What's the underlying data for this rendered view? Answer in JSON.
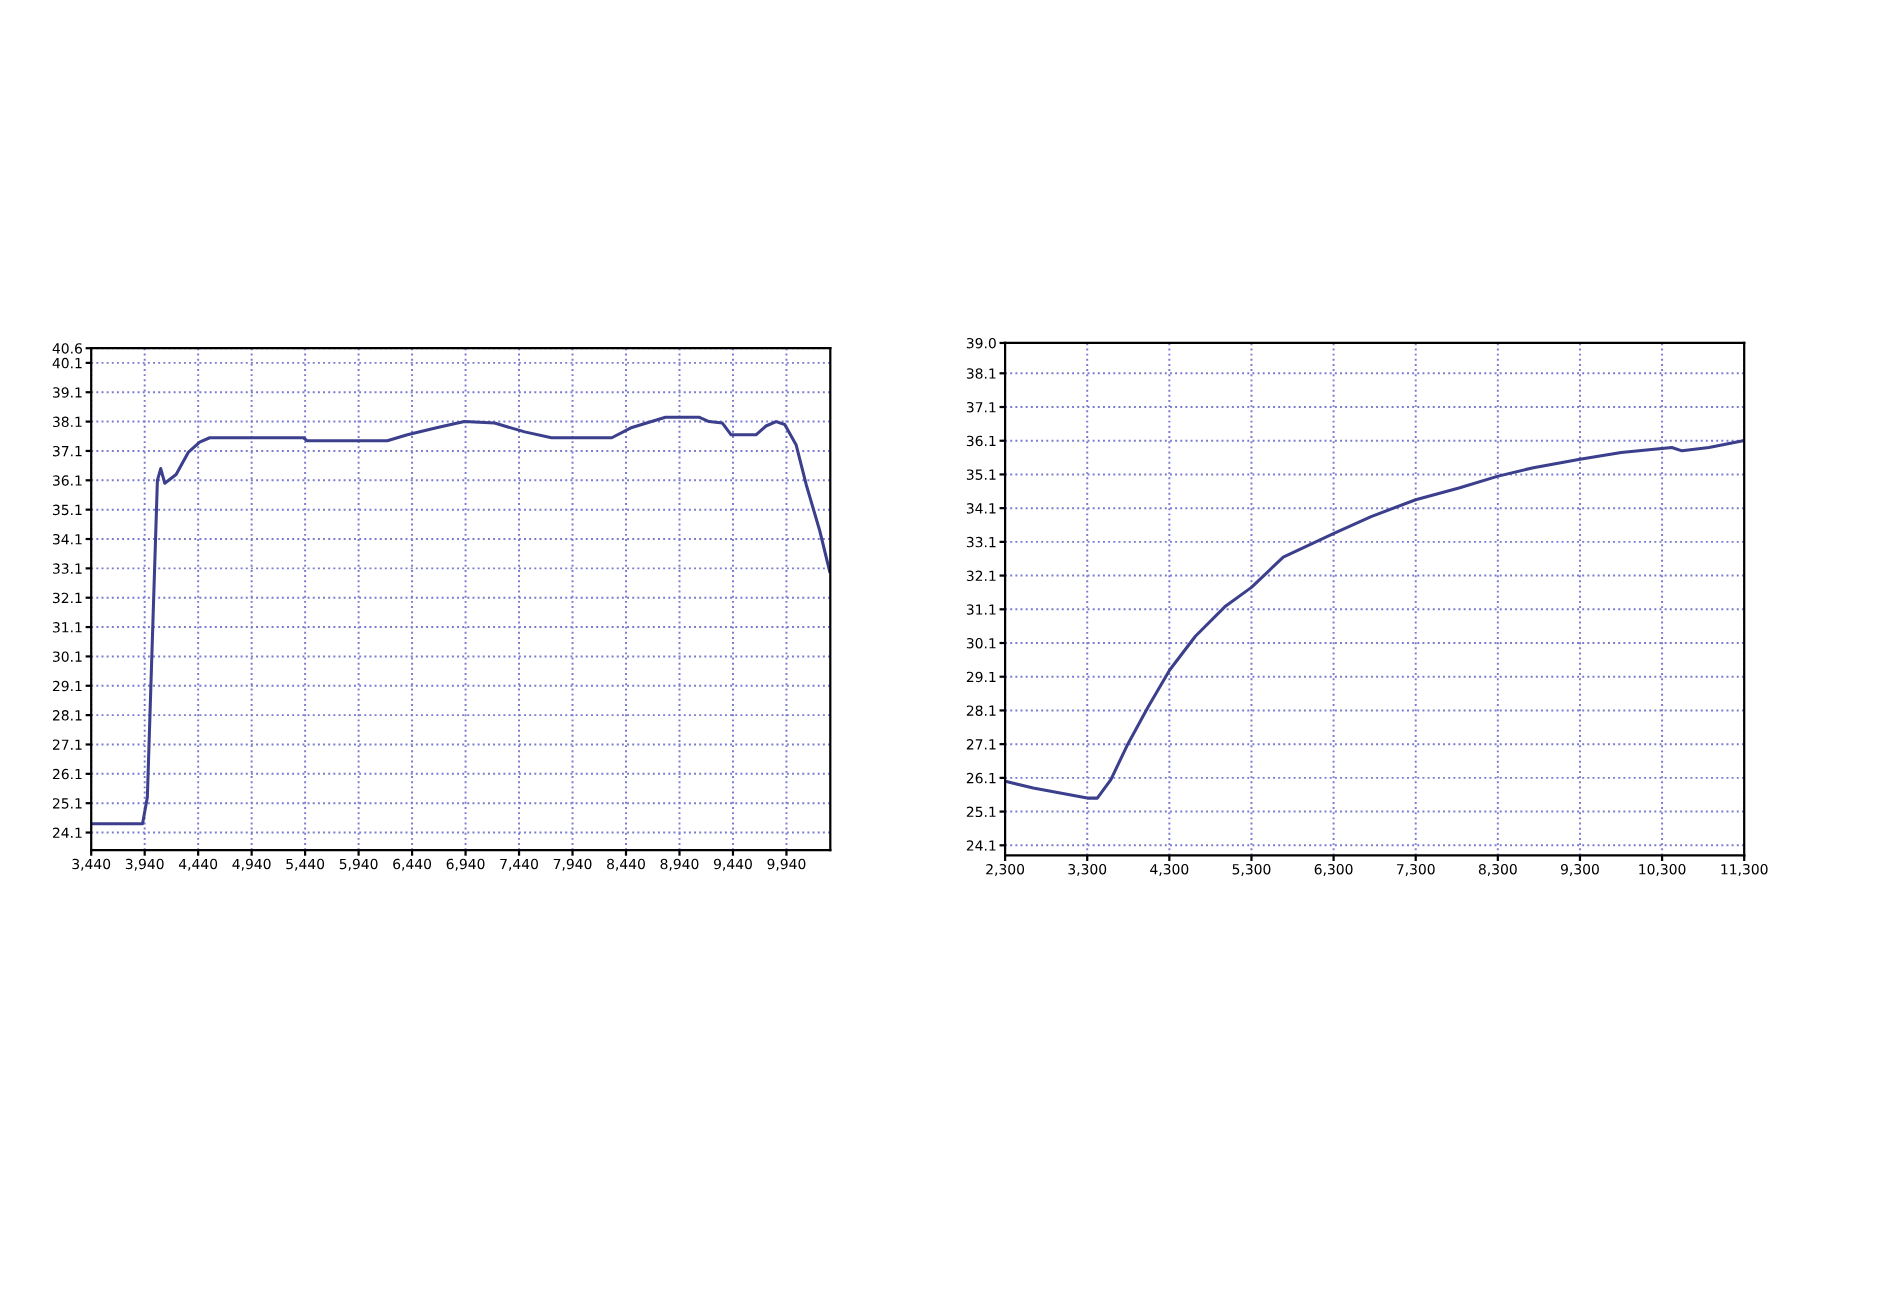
{
  "chart_data": [
    {
      "type": "line",
      "x": [
        3440,
        3920,
        3965,
        4059,
        4090,
        4128,
        4234,
        4347,
        4454,
        4548,
        5425,
        5456,
        6208,
        6396,
        6678,
        6929,
        7211,
        7493,
        7743,
        8307,
        8495,
        8809,
        9122,
        9216,
        9341,
        9423,
        9655,
        9749,
        9843,
        9924,
        10031,
        10125,
        10250,
        10344
      ],
      "series": [
        {
          "color": "#3b3f8c",
          "values": [
            24.4,
            24.4,
            25.3,
            36.1,
            36.5,
            36.0,
            36.3,
            37.05,
            37.4,
            37.55,
            37.55,
            37.45,
            37.45,
            37.65,
            37.9,
            38.1,
            38.05,
            37.75,
            37.55,
            37.55,
            37.9,
            38.25,
            38.25,
            38.1,
            38.05,
            37.65,
            37.65,
            37.95,
            38.1,
            38.0,
            37.3,
            35.95,
            34.4,
            33.0
          ]
        }
      ],
      "xlim": [
        3440,
        10350
      ],
      "ylim": [
        23.5,
        40.6
      ],
      "xticks": [
        {
          "value": 3440,
          "label": "3,440"
        },
        {
          "value": 3940,
          "label": "3,940"
        },
        {
          "value": 4440,
          "label": "4,440"
        },
        {
          "value": 4940,
          "label": "4,940"
        },
        {
          "value": 5440,
          "label": "5,440"
        },
        {
          "value": 5940,
          "label": "5,940"
        },
        {
          "value": 6440,
          "label": "6,440"
        },
        {
          "value": 6940,
          "label": "6,940"
        },
        {
          "value": 7440,
          "label": "7,440"
        },
        {
          "value": 7940,
          "label": "7,940"
        },
        {
          "value": 8440,
          "label": "8,440"
        },
        {
          "value": 8940,
          "label": "8,940"
        },
        {
          "value": 9440,
          "label": "9,440"
        },
        {
          "value": 9940,
          "label": "9,940"
        }
      ],
      "yticks": [
        24.1,
        25.1,
        26.1,
        27.1,
        28.1,
        29.1,
        30.1,
        31.1,
        32.1,
        33.1,
        34.1,
        35.1,
        36.1,
        37.1,
        38.1,
        39.1,
        40.1,
        40.6
      ],
      "grid": true,
      "legend": false,
      "marker": "none",
      "line_style": "solid"
    },
    {
      "type": "line",
      "x": [
        2300,
        2642,
        2971,
        3300,
        3423,
        3588,
        3794,
        4041,
        4304,
        4617,
        4987,
        5300,
        5687,
        6304,
        6757,
        7300,
        7827,
        8304,
        8733,
        9300,
        9802,
        10419,
        10543,
        10872,
        11284
      ],
      "series": [
        {
          "color": "#3b3f8c",
          "values": [
            26.0,
            25.8,
            25.65,
            25.5,
            25.5,
            26.05,
            27.1,
            28.2,
            29.3,
            30.3,
            31.2,
            31.75,
            32.65,
            33.35,
            33.85,
            34.35,
            34.7,
            35.05,
            35.3,
            35.55,
            35.75,
            35.9,
            35.8,
            35.9,
            36.1
          ]
        }
      ],
      "xlim": [
        2300,
        11300
      ],
      "ylim": [
        23.8,
        39.0
      ],
      "xticks": [
        {
          "value": 2300,
          "label": "2,300"
        },
        {
          "value": 3300,
          "label": "3,300"
        },
        {
          "value": 4300,
          "label": "4,300"
        },
        {
          "value": 5300,
          "label": "5,300"
        },
        {
          "value": 6300,
          "label": "6,300"
        },
        {
          "value": 7300,
          "label": "7,300"
        },
        {
          "value": 8300,
          "label": "8,300"
        },
        {
          "value": 9300,
          "label": "9,300"
        },
        {
          "value": 10300,
          "label": "10,300"
        },
        {
          "value": 11300,
          "label": "11,300"
        }
      ],
      "yticks": [
        24.1,
        25.1,
        26.1,
        27.1,
        28.1,
        29.1,
        30.1,
        31.1,
        32.1,
        33.1,
        34.1,
        35.1,
        36.1,
        37.1,
        38.1,
        {
          "value": 39.0,
          "label": "39.0"
        }
      ],
      "grid": true,
      "legend": false,
      "marker": "none",
      "line_style": "solid"
    }
  ]
}
